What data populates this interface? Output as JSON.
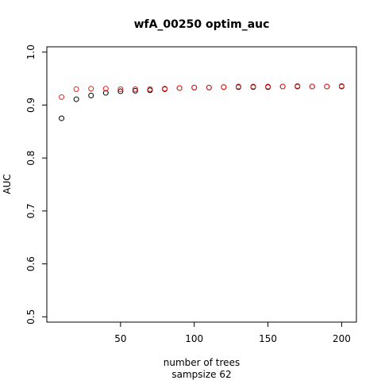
{
  "chart_data": {
    "type": "scatter",
    "title": "wfA_00250 optim_auc",
    "xlabel": "number of trees",
    "xlabel_sub": "sampsize 62",
    "ylabel": "AUC",
    "xlim": [
      0,
      210
    ],
    "ylim": [
      0.49,
      1.01
    ],
    "xticks": [
      50,
      100,
      150,
      200
    ],
    "yticks": [
      0.5,
      0.6,
      0.7,
      0.8,
      0.9,
      1.0
    ],
    "ytick_labels": [
      "0.5",
      "0.6",
      "0.7",
      "0.8",
      "0.9",
      "1.0"
    ],
    "grid": false,
    "marker": "open-circle",
    "series": [
      {
        "color": "#000000",
        "x": [
          10,
          20,
          30,
          40,
          50,
          60,
          70,
          80,
          90,
          100,
          110,
          120,
          130,
          140,
          150,
          160,
          170,
          180,
          190,
          200
        ],
        "y": [
          0.875,
          0.911,
          0.918,
          0.923,
          0.926,
          0.927,
          0.928,
          0.93,
          0.932,
          0.933,
          0.933,
          0.934,
          0.934,
          0.934,
          0.934,
          0.935,
          0.935,
          0.935,
          0.935,
          0.935
        ]
      },
      {
        "color": "#e8231f",
        "x": [
          10,
          20,
          30,
          40,
          50,
          60,
          70,
          80,
          90,
          100,
          110,
          120,
          130,
          140,
          150,
          160,
          170,
          180,
          190,
          200
        ],
        "y": [
          0.915,
          0.93,
          0.931,
          0.931,
          0.93,
          0.93,
          0.93,
          0.931,
          0.932,
          0.933,
          0.933,
          0.934,
          0.935,
          0.935,
          0.935,
          0.935,
          0.936,
          0.935,
          0.935,
          0.936
        ]
      }
    ]
  }
}
